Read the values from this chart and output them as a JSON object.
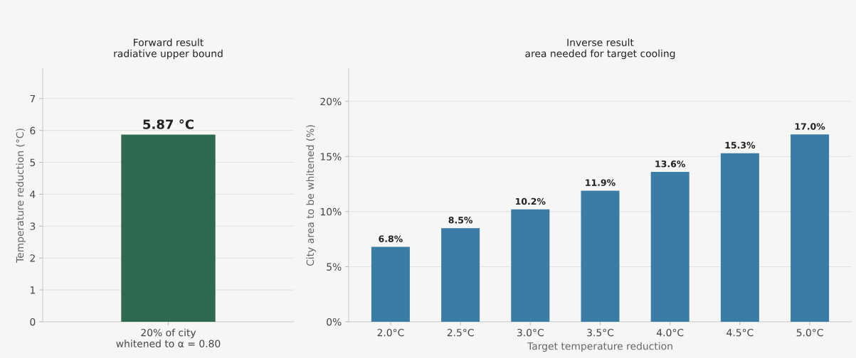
{
  "chart_data": [
    {
      "type": "bar",
      "title": "Forward result\nradiative upper bound",
      "ylabel": "Temperature reduction (°C)",
      "categories": [
        "20% of city\nwhitened to α = 0.80"
      ],
      "values": [
        5.87
      ],
      "value_labels": [
        "5.87 °C"
      ],
      "color": "#2d6a4f",
      "ylim": [
        0,
        7.93
      ],
      "yticks": [
        0,
        1,
        2,
        3,
        4,
        5,
        6,
        7
      ],
      "grid": "y",
      "legend": false
    },
    {
      "type": "bar",
      "title": "Inverse result\narea needed for target cooling",
      "xlabel": "Target temperature reduction",
      "ylabel": "City area to be whitened (%)",
      "categories": [
        "2.0°C",
        "2.5°C",
        "3.0°C",
        "3.5°C",
        "4.0°C",
        "4.5°C",
        "5.0°C"
      ],
      "values": [
        6.8,
        8.5,
        10.2,
        11.9,
        13.6,
        15.3,
        17.0
      ],
      "value_labels": [
        "6.8%",
        "8.5%",
        "10.2%",
        "11.9%",
        "13.6%",
        "15.3%",
        "17.0%"
      ],
      "color": "#3a7ca5",
      "ylim": [
        0,
        22.95
      ],
      "yticks": [
        {
          "value": 0,
          "label": "0%"
        },
        {
          "value": 5,
          "label": "5%"
        },
        {
          "value": 10,
          "label": "10%"
        },
        {
          "value": 15,
          "label": "15%"
        },
        {
          "value": 20,
          "label": "20%"
        }
      ],
      "grid": "y",
      "legend": false
    }
  ]
}
